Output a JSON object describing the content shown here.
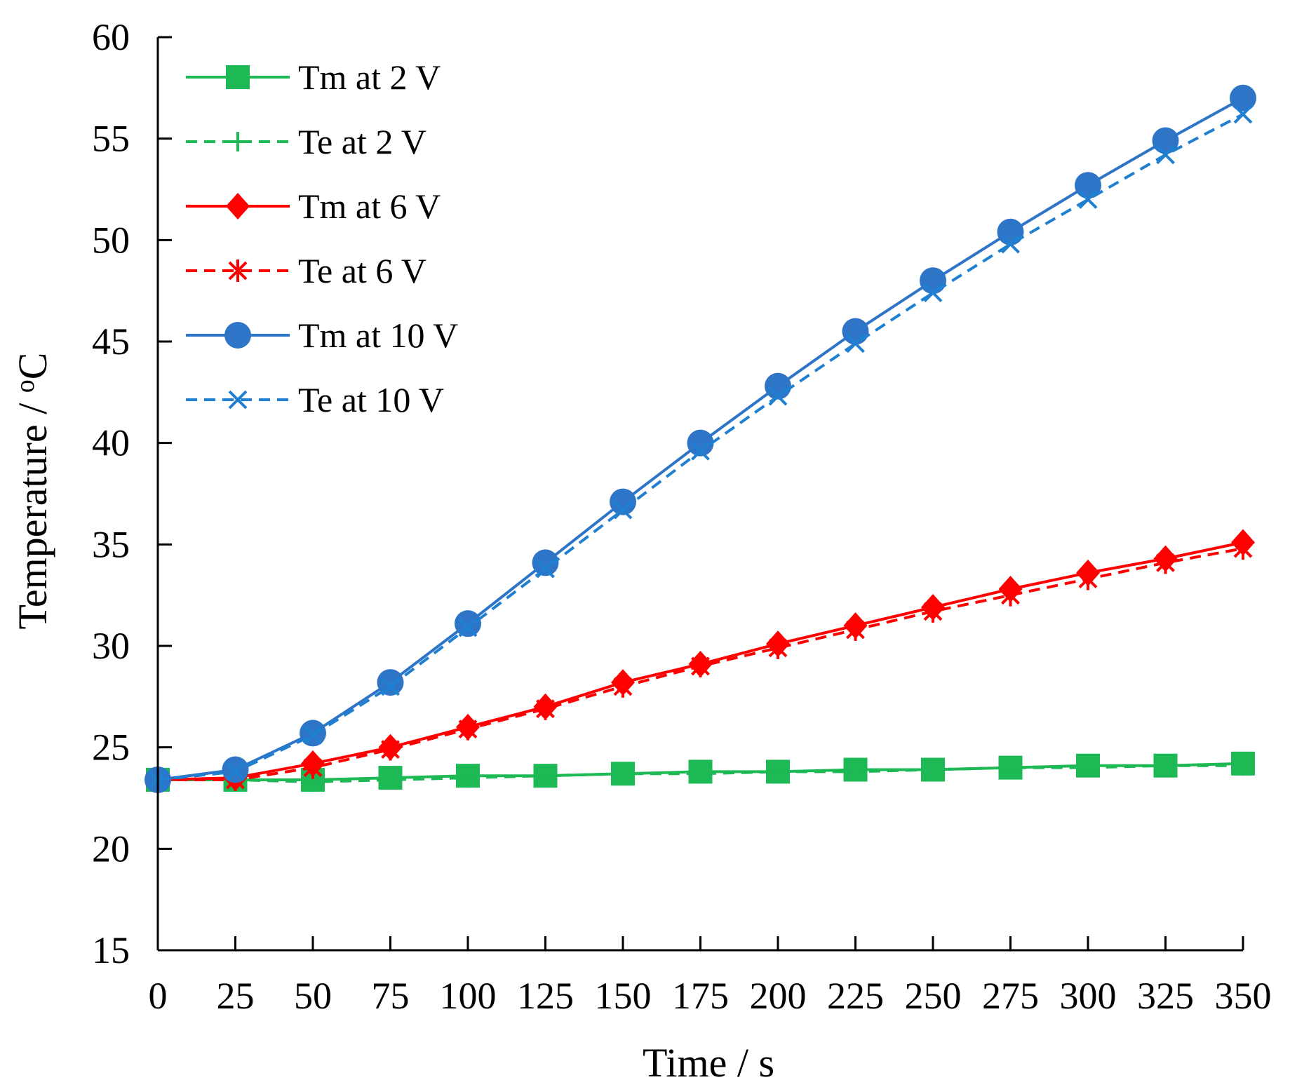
{
  "chart_data": {
    "type": "line",
    "title": "",
    "xlabel": "Time / s",
    "ylabel": "Temperature / oC",
    "ylabel_parts": {
      "main": "Temperature / ",
      "superscript": "o",
      "unit": "C"
    },
    "xlim": [
      0,
      350
    ],
    "ylim": [
      15,
      60
    ],
    "x_ticks": [
      0,
      25,
      50,
      75,
      100,
      125,
      150,
      175,
      200,
      225,
      250,
      275,
      300,
      325,
      350
    ],
    "y_ticks": [
      15,
      20,
      25,
      30,
      35,
      40,
      45,
      50,
      55,
      60
    ],
    "grid": false,
    "legend_position": "top-left",
    "x": [
      0,
      25,
      50,
      75,
      100,
      125,
      150,
      175,
      200,
      225,
      250,
      275,
      300,
      325,
      350
    ],
    "series": [
      {
        "name": "Tm at 2 V",
        "color": "#1db954",
        "dashed": false,
        "marker": "square",
        "values": [
          23.4,
          23.4,
          23.4,
          23.5,
          23.6,
          23.6,
          23.7,
          23.8,
          23.8,
          23.9,
          23.9,
          24.0,
          24.1,
          24.1,
          24.2
        ]
      },
      {
        "name": "Te at 2 V",
        "color": "#1db954",
        "dashed": true,
        "marker": "plus",
        "values": [
          23.4,
          23.4,
          23.3,
          23.4,
          23.5,
          23.6,
          23.7,
          23.7,
          23.8,
          23.8,
          23.9,
          24.0,
          24.0,
          24.1,
          24.1
        ]
      },
      {
        "name": "Tm at 6 V",
        "color": "#ff0000",
        "dashed": false,
        "marker": "diamond",
        "values": [
          23.4,
          23.5,
          24.2,
          25.0,
          26.0,
          27.0,
          28.2,
          29.1,
          30.1,
          31.0,
          31.9,
          32.8,
          33.6,
          34.3,
          35.1
        ]
      },
      {
        "name": "Te at 6 V",
        "color": "#ff0000",
        "dashed": true,
        "marker": "asterisk",
        "values": [
          23.4,
          23.4,
          24.0,
          24.9,
          25.9,
          26.9,
          28.0,
          29.0,
          29.9,
          30.8,
          31.7,
          32.5,
          33.3,
          34.1,
          34.8
        ]
      },
      {
        "name": "Tm at 10 V",
        "color": "#2e75c8",
        "dashed": false,
        "marker": "circle",
        "values": [
          23.4,
          23.9,
          25.7,
          28.2,
          31.1,
          34.1,
          37.1,
          40.0,
          42.8,
          45.5,
          48.0,
          50.4,
          52.7,
          54.9,
          57.0
        ]
      },
      {
        "name": "Te at 10 V",
        "color": "#1f7fd0",
        "dashed": true,
        "marker": "cross",
        "values": [
          23.4,
          23.8,
          25.6,
          28.0,
          30.9,
          33.8,
          36.7,
          39.6,
          42.3,
          44.9,
          47.4,
          49.8,
          52.0,
          54.2,
          56.2
        ]
      }
    ]
  }
}
